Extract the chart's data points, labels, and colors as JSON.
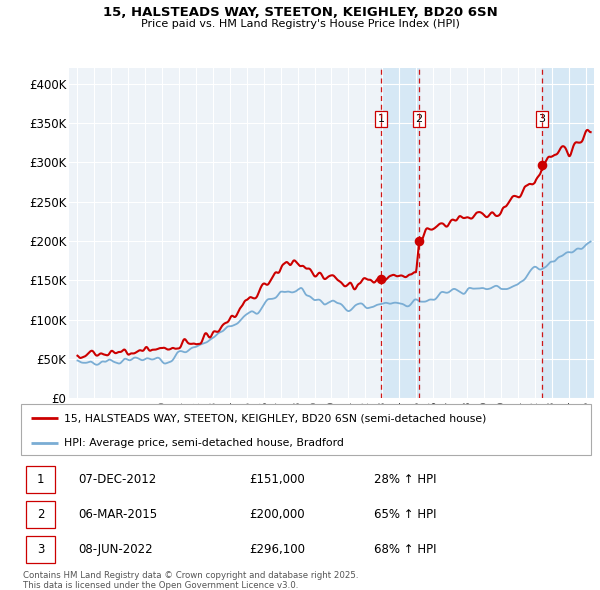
{
  "title1": "15, HALSTEADS WAY, STEETON, KEIGHLEY, BD20 6SN",
  "title2": "Price paid vs. HM Land Registry's House Price Index (HPI)",
  "ylabel_ticks": [
    "£0",
    "£50K",
    "£100K",
    "£150K",
    "£200K",
    "£250K",
    "£300K",
    "£350K",
    "£400K"
  ],
  "ytick_values": [
    0,
    50000,
    100000,
    150000,
    200000,
    250000,
    300000,
    350000,
    400000
  ],
  "xlim": [
    1994.5,
    2025.5
  ],
  "ylim": [
    0,
    420000
  ],
  "transactions": [
    {
      "num": 1,
      "date": "07-DEC-2012",
      "price": 151000,
      "pct": "28%",
      "year": 2012.92
    },
    {
      "num": 2,
      "date": "06-MAR-2015",
      "price": 200000,
      "pct": "65%",
      "year": 2015.17
    },
    {
      "num": 3,
      "date": "08-JUN-2022",
      "price": 296100,
      "pct": "68%",
      "year": 2022.44
    }
  ],
  "legend_line1": "15, HALSTEADS WAY, STEETON, KEIGHLEY, BD20 6SN (semi-detached house)",
  "legend_line2": "HPI: Average price, semi-detached house, Bradford",
  "footnote1": "Contains HM Land Registry data © Crown copyright and database right 2025.",
  "footnote2": "This data is licensed under the Open Government Licence v3.0.",
  "red_color": "#cc0000",
  "blue_color": "#7aadd4",
  "shade_color": "#d6e8f5",
  "background_color": "#ffffff",
  "plot_bg_color": "#eef3f8",
  "blue_knots_x": [
    1995,
    1996,
    1997,
    1998,
    1999,
    2000,
    2001,
    2002,
    2003,
    2004,
    2005,
    2006,
    2007,
    2008,
    2009,
    2010,
    2011,
    2012,
    2013,
    2014,
    2015,
    2016,
    2017,
    2018,
    2019,
    2020,
    2021,
    2022,
    2023,
    2024,
    2025.3
  ],
  "blue_knots_y": [
    46000,
    46500,
    47000,
    47500,
    48000,
    50000,
    56000,
    66000,
    78000,
    90000,
    105000,
    118000,
    135000,
    140000,
    128000,
    122000,
    118000,
    118000,
    120000,
    122000,
    124000,
    128000,
    132000,
    136000,
    140000,
    140000,
    148000,
    163000,
    175000,
    185000,
    198000
  ],
  "red_knots_x": [
    1995,
    1996,
    1997,
    1998,
    1999,
    2000,
    2001,
    2002,
    2003,
    2004,
    2005,
    2006,
    2007,
    2007.5,
    2008,
    2009,
    2010,
    2011,
    2012,
    2012.92,
    2013.5,
    2014,
    2014.5,
    2015.0,
    2015.17,
    2016,
    2017,
    2018,
    2019,
    2020,
    2021,
    2022,
    2022.44,
    2023,
    2024,
    2025.3
  ],
  "red_knots_y": [
    55000,
    56000,
    57000,
    58000,
    60000,
    62000,
    66000,
    72000,
    85000,
    100000,
    120000,
    142000,
    168000,
    175000,
    172000,
    158000,
    152000,
    148000,
    150000,
    151000,
    153000,
    155000,
    158000,
    160000,
    200000,
    215000,
    222000,
    228000,
    232000,
    238000,
    258000,
    275000,
    296100,
    308000,
    318000,
    340000
  ]
}
